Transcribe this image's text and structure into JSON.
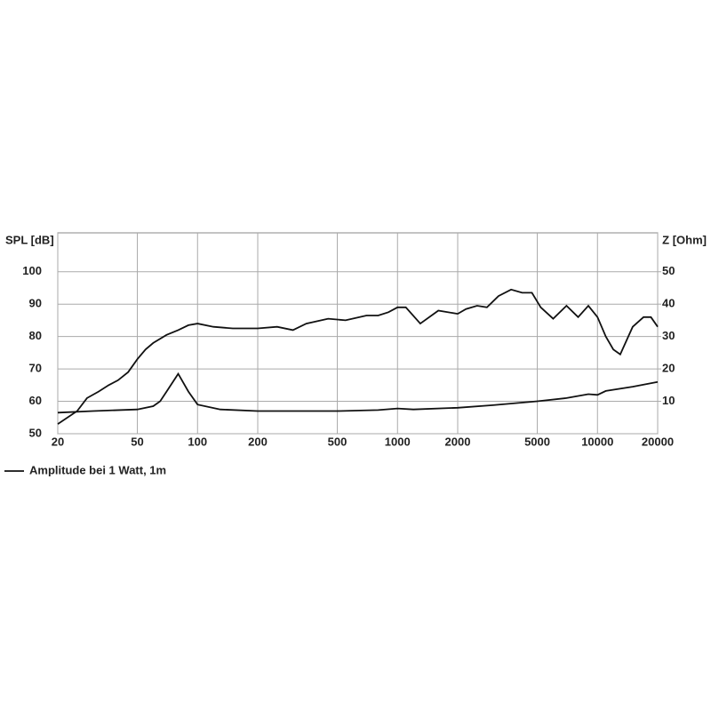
{
  "chart_data": {
    "type": "line",
    "ylabel": "SPL [dB]",
    "y2label": "Z [Ohm]",
    "xscale": "log",
    "grid": true,
    "xlim": [
      20,
      20000
    ],
    "xticks": [
      20,
      50,
      100,
      200,
      500,
      1000,
      2000,
      5000,
      10000,
      20000
    ],
    "ylim": [
      50,
      112
    ],
    "yticks": [
      50,
      60,
      70,
      80,
      90,
      100
    ],
    "y2lim": [
      0,
      62
    ],
    "y2ticks": [
      10,
      20,
      30,
      40,
      50
    ],
    "series": [
      {
        "name": "Amplitude bei 1 Watt, 1m",
        "color": "#111111",
        "x": [
          20,
          25,
          28,
          32,
          36,
          40,
          45,
          50,
          55,
          60,
          70,
          80,
          90,
          100,
          120,
          150,
          200,
          250,
          300,
          350,
          450,
          550,
          700,
          800,
          900,
          1000,
          1100,
          1300,
          1600,
          2000,
          2200,
          2500,
          2800,
          3200,
          3700,
          4200,
          4700,
          5200,
          6000,
          7000,
          8000,
          9000,
          10000,
          11000,
          12000,
          13000,
          15000,
          17000,
          18500,
          20000
        ],
        "values": [
          53,
          57,
          61,
          63,
          65,
          66.5,
          69,
          73,
          76,
          78,
          80.5,
          82,
          83.5,
          84,
          83,
          82.5,
          82.5,
          83,
          82,
          84,
          85.5,
          85,
          86.5,
          86.5,
          87.5,
          89,
          89,
          84,
          88,
          87,
          88.5,
          89.5,
          89,
          92.5,
          94.5,
          93.5,
          93.5,
          89,
          85.5,
          89.5,
          86,
          89.5,
          86,
          80,
          76,
          74.5,
          83,
          86,
          86,
          83
        ]
      },
      {
        "color": "#111111",
        "axis": "y2",
        "x": [
          20,
          30,
          50,
          60,
          65,
          70,
          80,
          90,
          100,
          130,
          200,
          300,
          500,
          800,
          1000,
          1200,
          2000,
          3000,
          5000,
          7000,
          9000,
          10000,
          11000,
          15000,
          20000
        ],
        "values": [
          6.5,
          7,
          7.5,
          8.5,
          10,
          13,
          18.5,
          13,
          9,
          7.5,
          7,
          7,
          7,
          7.3,
          7.8,
          7.5,
          8,
          8.8,
          10,
          11,
          12.2,
          12,
          13.2,
          14.5,
          16
        ]
      }
    ]
  }
}
